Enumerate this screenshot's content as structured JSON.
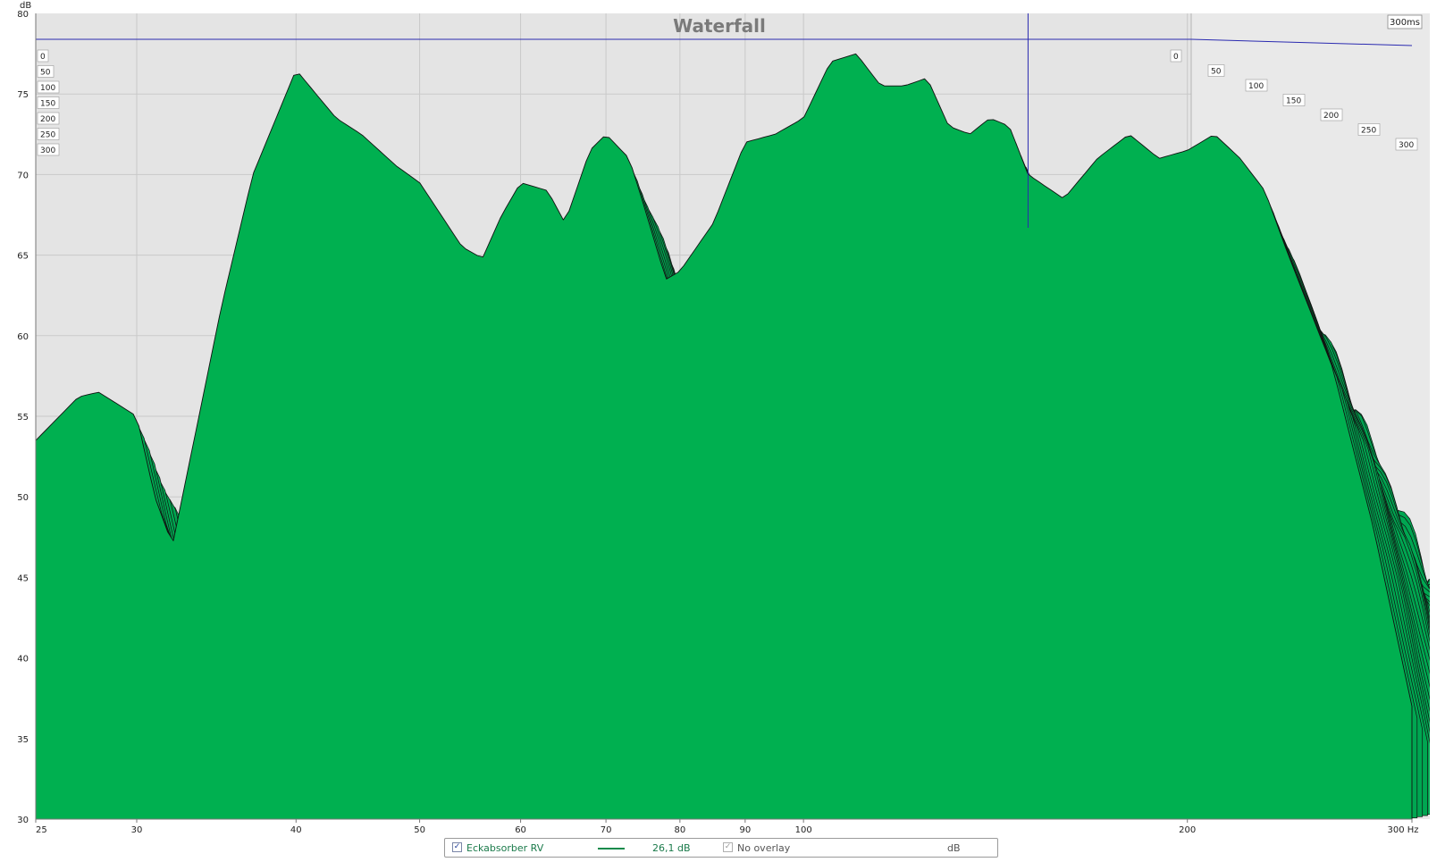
{
  "chart_data": {
    "type": "area",
    "title": "Waterfall",
    "ylabel": "dB",
    "x_unit_label": "Hz",
    "depth_end_label": "300ms",
    "x_scale": "log",
    "xlim": [
      25,
      300
    ],
    "ylim": [
      30,
      80
    ],
    "x_ticks": [
      25,
      30,
      40,
      50,
      60,
      70,
      80,
      90,
      100,
      200,
      300
    ],
    "x_tick_labels": [
      "25",
      "30",
      "40",
      "50",
      "60",
      "70",
      "80",
      "90",
      "100",
      "200",
      "300 Hz"
    ],
    "y_ticks": [
      30,
      35,
      40,
      45,
      50,
      55,
      60,
      65,
      70,
      75,
      80
    ],
    "time_slices_ms": [
      0,
      50,
      100,
      150,
      200,
      250,
      300
    ],
    "time_labels_left": [
      "0",
      "50",
      "100",
      "150",
      "200",
      "250",
      "300"
    ],
    "time_labels_right": [
      "0",
      "50",
      "100",
      "150",
      "200",
      "250",
      "300"
    ],
    "cursor_marker_hz": 150,
    "grid": true,
    "fill_color": "#00a651",
    "front_fill_color": "#00b050",
    "line_color": "#111111",
    "series": [
      {
        "name": "Eckabsorber RV",
        "frequencies_hz": [
          25,
          27,
          28,
          30,
          31,
          32,
          35,
          37,
          40,
          43,
          45,
          48,
          50,
          54,
          56,
          58,
          60,
          63,
          65,
          68,
          70,
          73,
          75,
          78,
          80,
          85,
          90,
          95,
          100,
          105,
          110,
          115,
          120,
          125,
          130,
          135,
          140,
          145,
          150,
          160,
          170,
          180,
          190,
          200,
          210,
          220,
          230,
          240,
          260,
          280,
          300
        ],
        "level_db_0ms": [
          53.5,
          56.2,
          56.5,
          55.0,
          50.0,
          47.0,
          62.0,
          70.0,
          76.5,
          73.5,
          72.5,
          70.5,
          69.5,
          65.5,
          64.8,
          67.5,
          69.5,
          69.0,
          67.0,
          71.5,
          72.5,
          71.0,
          68.0,
          63.5,
          64.0,
          67.0,
          72.0,
          72.5,
          73.5,
          77.0,
          77.5,
          75.5,
          75.5,
          76.0,
          73.0,
          72.5,
          73.5,
          73.0,
          70.0,
          68.5,
          71.0,
          72.5,
          71.0,
          71.5,
          72.5,
          71.0,
          69.0,
          65.0,
          58.0,
          48.0,
          37.0
        ]
      }
    ]
  },
  "legend": {
    "series_name": "Eckabsorber RV",
    "series_value": "26,1 dB",
    "overlay_label": "No overlay",
    "unit": "dB"
  }
}
